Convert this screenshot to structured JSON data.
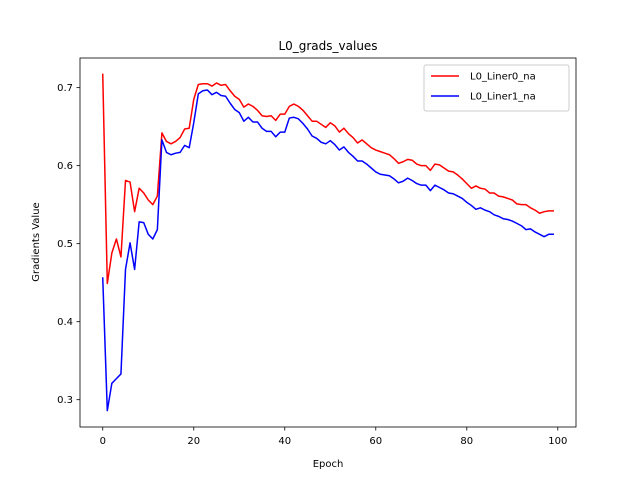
{
  "chart_data": {
    "type": "line",
    "title": "L0_grads_values",
    "xlabel": "Epoch",
    "ylabel": "Gradients Value",
    "xlim": [
      -5,
      104
    ],
    "ylim": [
      0.265,
      0.738
    ],
    "xticks": [
      0,
      20,
      40,
      60,
      80,
      100
    ],
    "yticks": [
      0.3,
      0.4,
      0.5,
      0.6,
      0.7
    ],
    "xtick_labels": [
      "0",
      "20",
      "40",
      "60",
      "80",
      "100"
    ],
    "ytick_labels": [
      "0.3",
      "0.4",
      "0.5",
      "0.6",
      "0.7"
    ],
    "grid": false,
    "legend_position": "top-right",
    "series": [
      {
        "name": "L0_Liner0_na",
        "color": "#ff0000",
        "x": [
          0,
          1,
          2,
          3,
          4,
          5,
          6,
          7,
          8,
          9,
          10,
          11,
          12,
          13,
          14,
          15,
          16,
          17,
          18,
          19,
          20,
          21,
          22,
          23,
          24,
          25,
          26,
          27,
          28,
          29,
          30,
          31,
          32,
          33,
          34,
          35,
          36,
          37,
          38,
          39,
          40,
          41,
          42,
          43,
          44,
          45,
          46,
          47,
          48,
          49,
          50,
          51,
          52,
          53,
          54,
          55,
          56,
          57,
          58,
          59,
          60,
          61,
          62,
          63,
          64,
          65,
          66,
          67,
          68,
          69,
          70,
          71,
          72,
          73,
          74,
          75,
          76,
          77,
          78,
          79,
          80,
          81,
          82,
          83,
          84,
          85,
          86,
          87,
          88,
          89,
          90,
          91,
          92,
          93,
          94,
          95,
          96,
          97,
          98,
          99
        ],
        "values": [
          0.717,
          0.449,
          0.488,
          0.506,
          0.483,
          0.581,
          0.579,
          0.541,
          0.571,
          0.565,
          0.556,
          0.55,
          0.561,
          0.642,
          0.631,
          0.628,
          0.631,
          0.636,
          0.647,
          0.648,
          0.685,
          0.704,
          0.705,
          0.705,
          0.702,
          0.706,
          0.703,
          0.704,
          0.696,
          0.689,
          0.685,
          0.675,
          0.679,
          0.676,
          0.671,
          0.664,
          0.663,
          0.664,
          0.658,
          0.666,
          0.666,
          0.676,
          0.679,
          0.676,
          0.671,
          0.664,
          0.657,
          0.657,
          0.653,
          0.649,
          0.655,
          0.651,
          0.643,
          0.648,
          0.641,
          0.636,
          0.629,
          0.633,
          0.628,
          0.623,
          0.62,
          0.618,
          0.616,
          0.614,
          0.609,
          0.603,
          0.605,
          0.608,
          0.607,
          0.602,
          0.6,
          0.6,
          0.594,
          0.602,
          0.601,
          0.597,
          0.593,
          0.592,
          0.588,
          0.583,
          0.577,
          0.571,
          0.574,
          0.571,
          0.57,
          0.565,
          0.565,
          0.561,
          0.56,
          0.558,
          0.556,
          0.551,
          0.55,
          0.55,
          0.546,
          0.543,
          0.539,
          0.541,
          0.542,
          0.542
        ]
      },
      {
        "name": "L0_Liner1_na",
        "color": "#0000ff",
        "x": [
          0,
          1,
          2,
          3,
          4,
          5,
          6,
          7,
          8,
          9,
          10,
          11,
          12,
          13,
          14,
          15,
          16,
          17,
          18,
          19,
          20,
          21,
          22,
          23,
          24,
          25,
          26,
          27,
          28,
          29,
          30,
          31,
          32,
          33,
          34,
          35,
          36,
          37,
          38,
          39,
          40,
          41,
          42,
          43,
          44,
          45,
          46,
          47,
          48,
          49,
          50,
          51,
          52,
          53,
          54,
          55,
          56,
          57,
          58,
          59,
          60,
          61,
          62,
          63,
          64,
          65,
          66,
          67,
          68,
          69,
          70,
          71,
          72,
          73,
          74,
          75,
          76,
          77,
          78,
          79,
          80,
          81,
          82,
          83,
          84,
          85,
          86,
          87,
          88,
          89,
          90,
          91,
          92,
          93,
          94,
          95,
          96,
          97,
          98,
          99
        ],
        "values": [
          0.456,
          0.286,
          0.321,
          0.327,
          0.333,
          0.467,
          0.501,
          0.467,
          0.528,
          0.527,
          0.512,
          0.506,
          0.518,
          0.633,
          0.617,
          0.614,
          0.616,
          0.617,
          0.626,
          0.623,
          0.655,
          0.692,
          0.696,
          0.697,
          0.691,
          0.694,
          0.69,
          0.689,
          0.68,
          0.672,
          0.668,
          0.657,
          0.662,
          0.656,
          0.656,
          0.648,
          0.644,
          0.644,
          0.637,
          0.643,
          0.643,
          0.661,
          0.662,
          0.66,
          0.654,
          0.647,
          0.638,
          0.635,
          0.63,
          0.628,
          0.632,
          0.627,
          0.62,
          0.624,
          0.617,
          0.612,
          0.606,
          0.606,
          0.602,
          0.597,
          0.592,
          0.589,
          0.588,
          0.587,
          0.583,
          0.578,
          0.58,
          0.584,
          0.581,
          0.577,
          0.575,
          0.575,
          0.568,
          0.575,
          0.572,
          0.569,
          0.565,
          0.564,
          0.561,
          0.558,
          0.553,
          0.549,
          0.544,
          0.546,
          0.543,
          0.541,
          0.537,
          0.535,
          0.532,
          0.531,
          0.529,
          0.526,
          0.523,
          0.518,
          0.519,
          0.515,
          0.512,
          0.509,
          0.512,
          0.512
        ]
      }
    ]
  }
}
